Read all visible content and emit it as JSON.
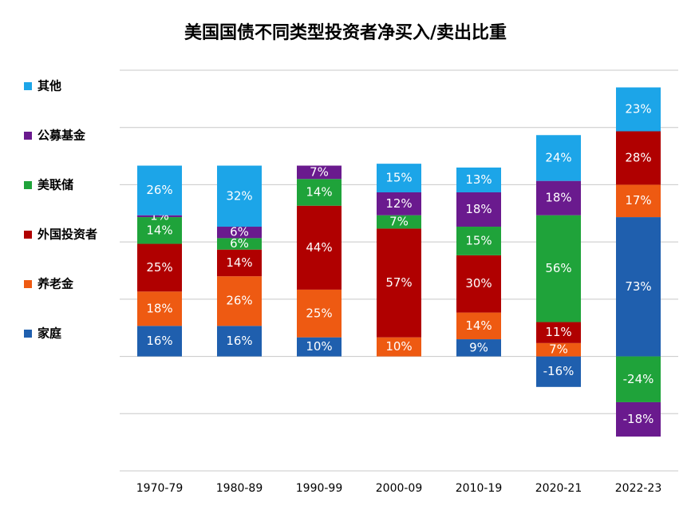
{
  "chart_data": {
    "type": "bar",
    "stacked": true,
    "title": "美国国债不同类型投资者净买入/卖出比重",
    "categories": [
      "1970-79",
      "1980-89",
      "1990-99",
      "2000-09",
      "2010-19",
      "2020-21",
      "2022-23"
    ],
    "series": [
      {
        "name": "家庭",
        "color": "#1f5fae",
        "values": [
          16,
          16,
          10,
          null,
          9,
          -16,
          73
        ],
        "value_labels": [
          "16%",
          "16%",
          "10%",
          null,
          "9%",
          "-16%",
          "73%"
        ]
      },
      {
        "name": "养老金",
        "color": "#ee5a12",
        "values": [
          18,
          26,
          25,
          10,
          14,
          7,
          17
        ],
        "value_labels": [
          "18%",
          "26%",
          "25%",
          "10%",
          "14%",
          "7%",
          "17%"
        ]
      },
      {
        "name": "外国投资者",
        "color": "#b00000",
        "values": [
          25,
          14,
          44,
          57,
          30,
          11,
          28
        ],
        "value_labels": [
          "25%",
          "14%",
          "44%",
          "57%",
          "30%",
          "11%",
          "28%"
        ]
      },
      {
        "name": "美联储",
        "color": "#1fa33a",
        "values": [
          14,
          6,
          14,
          7,
          15,
          56,
          -24
        ],
        "value_labels": [
          "14%",
          "6%",
          "14%",
          "7%",
          "15%",
          "56%",
          "-24%"
        ]
      },
      {
        "name": "公募基金",
        "color": "#6a1a8e",
        "values": [
          1,
          6,
          7,
          12,
          18,
          18,
          -18
        ],
        "value_labels": [
          "1%",
          "6%",
          "7%",
          "12%",
          "18%",
          "18%",
          "-18%"
        ]
      },
      {
        "name": "其他",
        "color": "#1ca5e8",
        "values": [
          26,
          32,
          null,
          15,
          13,
          24,
          23
        ],
        "value_labels": [
          "26%",
          "32%",
          null,
          "15%",
          "13%",
          "24%",
          "23%"
        ]
      }
    ],
    "ylim": [
      -60,
      150
    ],
    "yticks": [
      -60,
      -30,
      0,
      30,
      60,
      90,
      120,
      150
    ],
    "grid": true
  }
}
